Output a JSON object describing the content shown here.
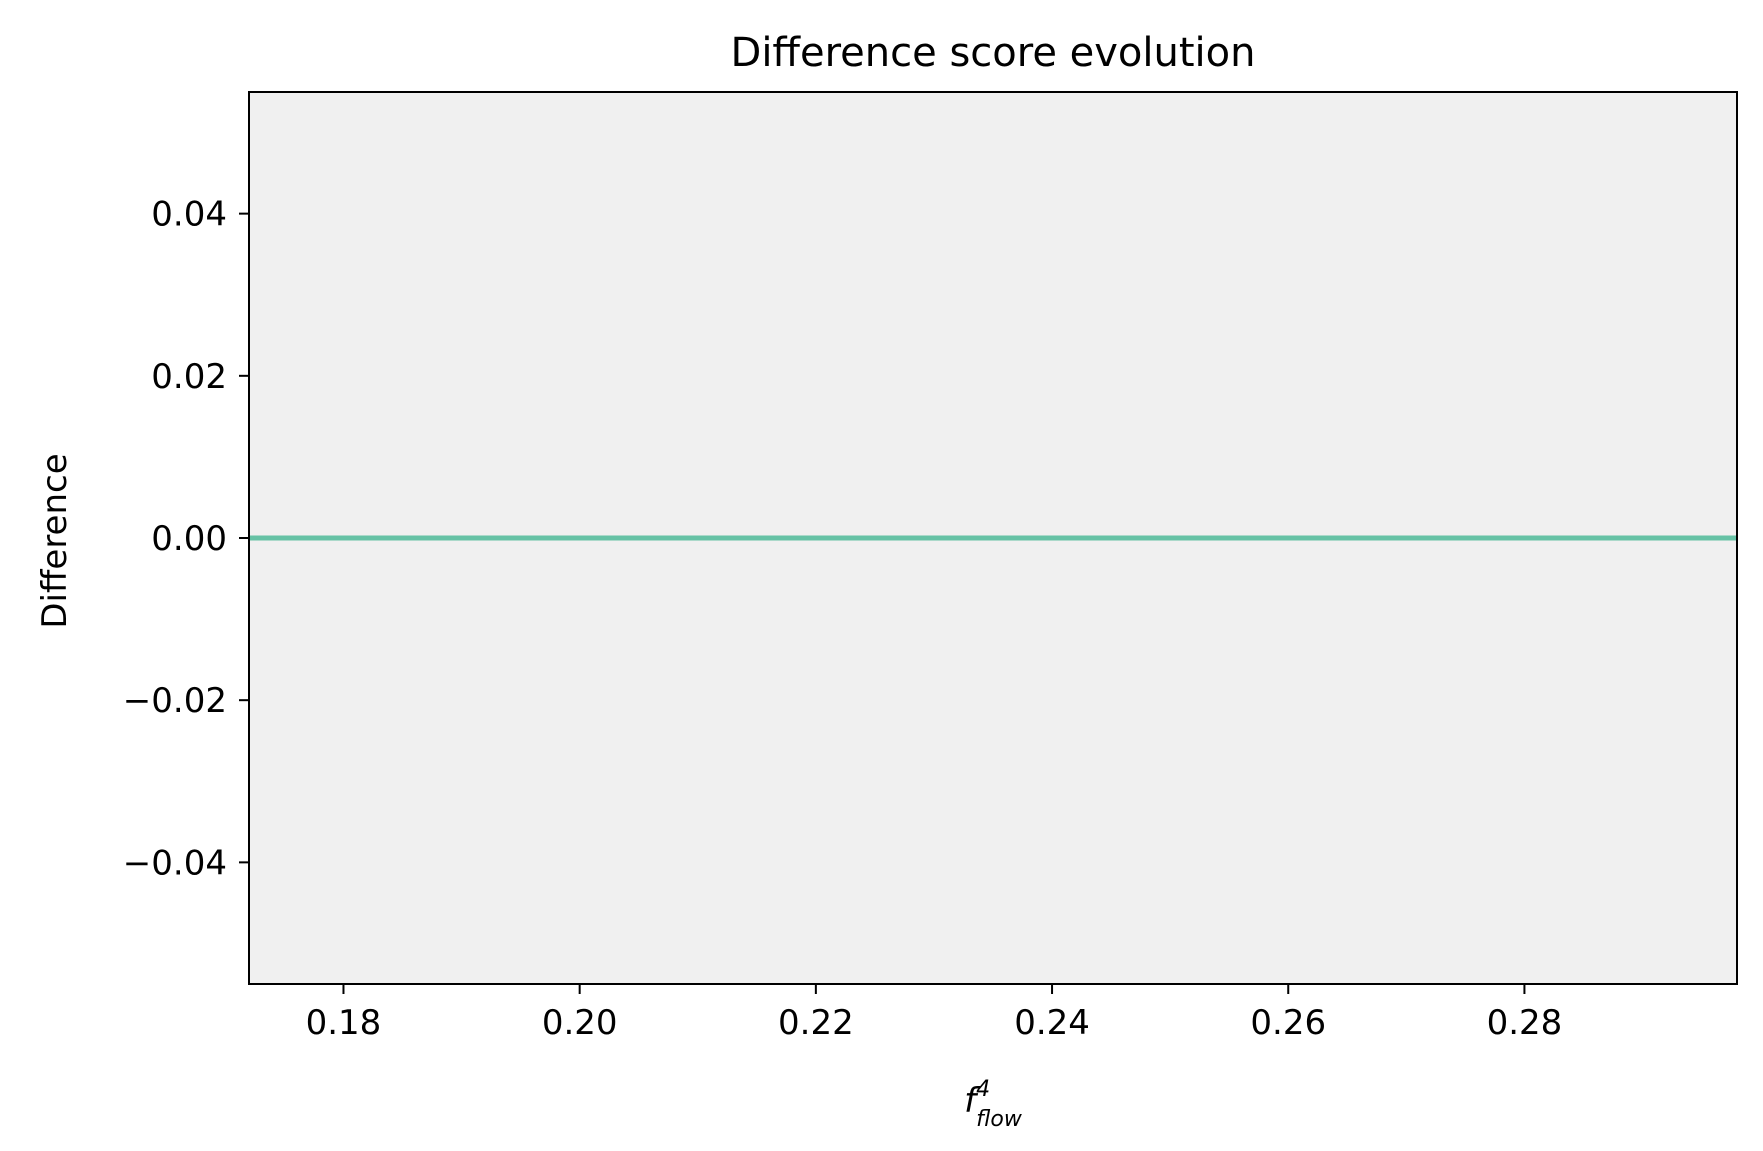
{
  "chart_data": {
    "type": "line",
    "title": "Difference score evolution",
    "xlabel_base": "f",
    "xlabel_sup": "4",
    "xlabel_sub": "flow",
    "ylabel": "Difference",
    "xlim": [
      0.172,
      0.298
    ],
    "ylim": [
      -0.055,
      0.055
    ],
    "xticks": [
      0.18,
      0.2,
      0.22,
      0.24,
      0.26,
      0.28
    ],
    "xtick_labels": [
      "0.18",
      "0.20",
      "0.22",
      "0.24",
      "0.26",
      "0.28"
    ],
    "yticks": [
      0.04,
      0.02,
      0.0,
      -0.02,
      -0.04
    ],
    "ytick_labels": [
      "0.04",
      "0.02",
      "0.00",
      "−0.02",
      "−0.04"
    ],
    "grid": false,
    "series": [
      {
        "x": [
          0.172,
          0.298
        ],
        "y": [
          0.0,
          0.0
        ]
      }
    ],
    "colors": {
      "plot_background": "#f0f0f0",
      "line": "#66c2a5",
      "axes": "#000000"
    }
  }
}
